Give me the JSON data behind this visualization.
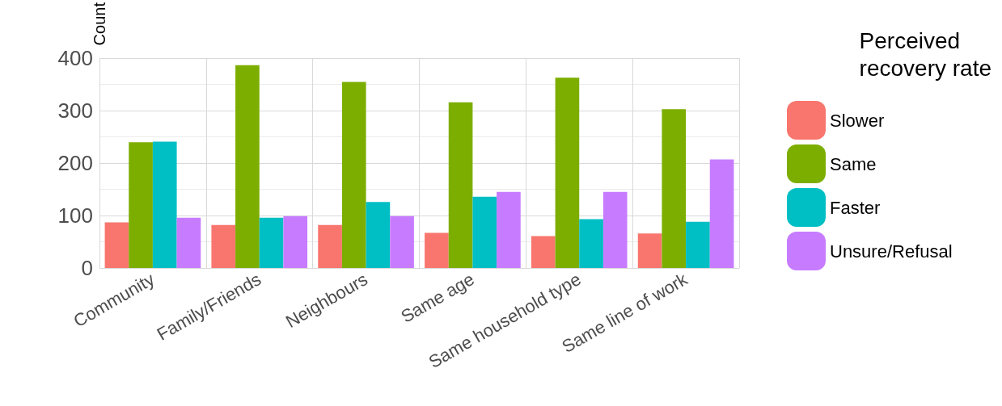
{
  "chart_data": {
    "type": "bar",
    "ylabel": "Count",
    "legend_title": "Perceived\nrecovery rate",
    "categories": [
      "Community",
      "Family/Friends",
      "Neighbours",
      "Same age",
      "Same household type",
      "Same line of work"
    ],
    "series": [
      {
        "name": "Slower",
        "color": "#f8766d",
        "values": [
          87,
          82,
          82,
          67,
          61,
          66
        ]
      },
      {
        "name": "Same",
        "color": "#7cae00",
        "values": [
          240,
          387,
          355,
          316,
          363,
          303
        ]
      },
      {
        "name": "Faster",
        "color": "#00bfc4",
        "values": [
          241,
          96,
          126,
          136,
          93,
          88
        ]
      },
      {
        "name": "Unsure/Refusal",
        "color": "#c77cff",
        "values": [
          96,
          99,
          99,
          145,
          145,
          207
        ]
      }
    ],
    "ylim": [
      0,
      400
    ],
    "yticks": [
      0,
      100,
      200,
      300,
      400
    ],
    "grid": true,
    "legend": "right"
  }
}
